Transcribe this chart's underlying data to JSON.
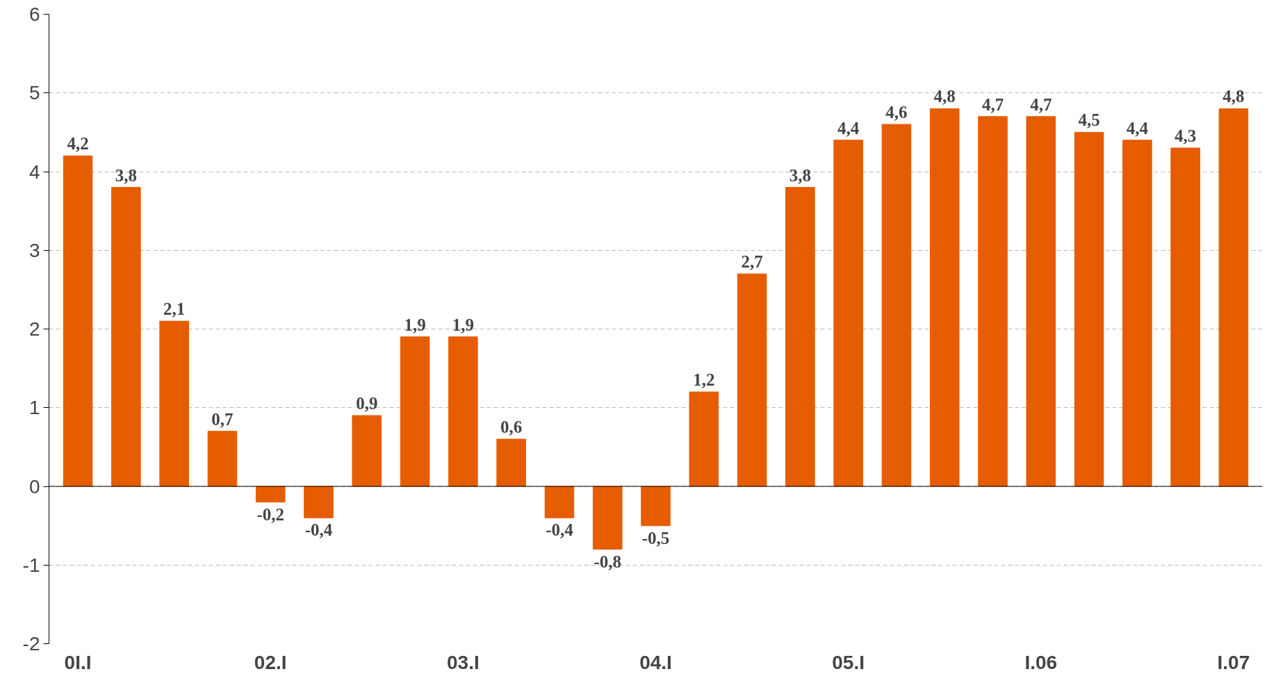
{
  "chart_data": {
    "type": "bar",
    "categories": [
      "0I.I",
      null,
      null,
      null,
      "02.I",
      null,
      null,
      null,
      "03.I",
      null,
      null,
      null,
      "04.I",
      null,
      null,
      null,
      "05.I",
      null,
      null,
      null,
      "I.06",
      null,
      null,
      null,
      "I.07"
    ],
    "values": [
      4.2,
      3.8,
      2.1,
      0.7,
      -0.2,
      -0.4,
      0.9,
      1.9,
      1.9,
      0.6,
      -0.4,
      -0.8,
      -0.5,
      1.2,
      2.7,
      3.8,
      4.4,
      4.6,
      4.8,
      4.7,
      4.7,
      4.5,
      4.4,
      4.3,
      4.8
    ],
    "value_labels": [
      "4,2",
      "3,8",
      "2,1",
      "0,7",
      "-0,2",
      "-0,4",
      "0,9",
      "1,9",
      "1,9",
      "0,6",
      "-0,4",
      "-0,8",
      "-0,5",
      "1,2",
      "2,7",
      "3,8",
      "4,4",
      "4,6",
      "4,8",
      "4,7",
      "4,7",
      "4,5",
      "4,4",
      "4,3",
      "4,8"
    ],
    "color": "#e65c00",
    "ylim": [
      -2,
      6
    ],
    "yticks": [
      -2,
      -1,
      0,
      1,
      2,
      3,
      4,
      5,
      6
    ],
    "grid": "y"
  }
}
